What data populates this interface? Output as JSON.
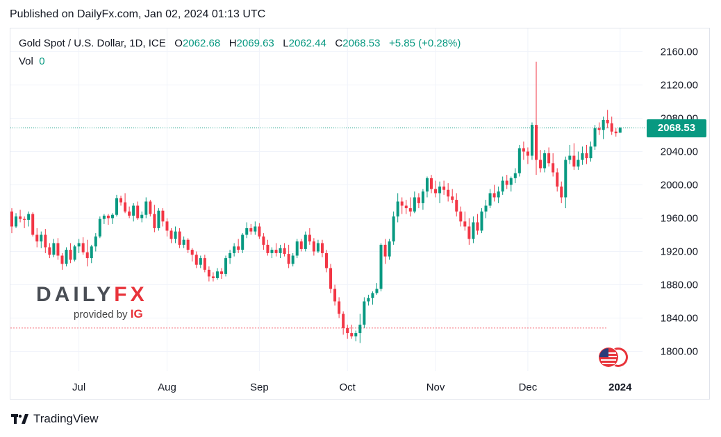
{
  "published": "Published on DailyFx.com, Jan 02, 2024 01:13 UTC",
  "header": {
    "symbol": "Gold Spot / U.S. Dollar, 1D, ICE",
    "o_label": "O",
    "o_value": "2062.68",
    "h_label": "H",
    "h_value": "2069.63",
    "l_label": "L",
    "l_value": "2062.44",
    "c_label": "C",
    "c_value": "2068.53",
    "change": "+5.85 (+0.28%)"
  },
  "volume": {
    "label": "Vol",
    "value": "0"
  },
  "last_price": "2068.53",
  "logo": {
    "daily": "DAILY",
    "fx": "FX",
    "provided_by": "provided by",
    "ig": "IG"
  },
  "footer": {
    "brand": "TradingView"
  },
  "colors": {
    "up": "#089981",
    "down": "#f23645",
    "grid": "#f0f3fa",
    "text": "#131722",
    "accent": "#089981"
  },
  "chart_data": {
    "type": "candlestick",
    "title": "Gold Spot / U.S. Dollar, 1D, ICE",
    "y_ticks": [
      "2160.00",
      "2120.00",
      "2080.00",
      "2040.00",
      "2000.00",
      "1960.00",
      "1920.00",
      "1880.00",
      "1840.00",
      "1800.00"
    ],
    "x_ticks": [
      {
        "label": "Jul",
        "index": 16
      },
      {
        "label": "Aug",
        "index": 37
      },
      {
        "label": "Sep",
        "index": 59
      },
      {
        "label": "Oct",
        "index": 80
      },
      {
        "label": "Nov",
        "index": 101
      },
      {
        "label": "Dec",
        "index": 123
      },
      {
        "label": "2024",
        "index": 145
      }
    ],
    "ylim": [
      1780,
      2180
    ],
    "last_close": 2068.53,
    "reference_low": 1828,
    "candles": [
      [
        1968,
        1972,
        1942,
        1950
      ],
      [
        1950,
        1966,
        1948,
        1962
      ],
      [
        1962,
        1970,
        1955,
        1959
      ],
      [
        1959,
        1962,
        1948,
        1958
      ],
      [
        1958,
        1968,
        1950,
        1965
      ],
      [
        1965,
        1967,
        1938,
        1940
      ],
      [
        1940,
        1948,
        1925,
        1932
      ],
      [
        1932,
        1944,
        1924,
        1940
      ],
      [
        1940,
        1947,
        1918,
        1925
      ],
      [
        1925,
        1930,
        1912,
        1916
      ],
      [
        1916,
        1935,
        1913,
        1930
      ],
      [
        1930,
        1936,
        1910,
        1915
      ],
      [
        1915,
        1918,
        1898,
        1905
      ],
      [
        1905,
        1925,
        1902,
        1922
      ],
      [
        1922,
        1930,
        1906,
        1910
      ],
      [
        1910,
        1928,
        1908,
        1926
      ],
      [
        1926,
        1935,
        1918,
        1930
      ],
      [
        1930,
        1937,
        1916,
        1919
      ],
      [
        1919,
        1934,
        1902,
        1912
      ],
      [
        1912,
        1928,
        1906,
        1926
      ],
      [
        1926,
        1942,
        1920,
        1938
      ],
      [
        1938,
        1962,
        1936,
        1959
      ],
      [
        1959,
        1965,
        1953,
        1963
      ],
      [
        1963,
        1965,
        1952,
        1960
      ],
      [
        1960,
        1966,
        1953,
        1964
      ],
      [
        1964,
        1988,
        1962,
        1984
      ],
      [
        1984,
        1987,
        1975,
        1979
      ],
      [
        1979,
        1990,
        1966,
        1968
      ],
      [
        1968,
        1974,
        1960,
        1963
      ],
      [
        1963,
        1978,
        1956,
        1975
      ],
      [
        1975,
        1980,
        1958,
        1960
      ],
      [
        1960,
        1968,
        1955,
        1964
      ],
      [
        1964,
        1985,
        1960,
        1980
      ],
      [
        1980,
        1982,
        1962,
        1965
      ],
      [
        1965,
        1976,
        1943,
        1948
      ],
      [
        1948,
        1972,
        1945,
        1969
      ],
      [
        1969,
        1972,
        1950,
        1956
      ],
      [
        1956,
        1960,
        1938,
        1945
      ],
      [
        1945,
        1948,
        1930,
        1935
      ],
      [
        1935,
        1950,
        1930,
        1944
      ],
      [
        1944,
        1948,
        1924,
        1928
      ],
      [
        1928,
        1938,
        1924,
        1934
      ],
      [
        1934,
        1936,
        1918,
        1922
      ],
      [
        1922,
        1924,
        1908,
        1916
      ],
      [
        1916,
        1920,
        1900,
        1904
      ],
      [
        1904,
        1915,
        1900,
        1912
      ],
      [
        1912,
        1916,
        1895,
        1898
      ],
      [
        1898,
        1902,
        1884,
        1890
      ],
      [
        1890,
        1895,
        1884,
        1888
      ],
      [
        1888,
        1900,
        1886,
        1896
      ],
      [
        1896,
        1900,
        1887,
        1893
      ],
      [
        1893,
        1915,
        1890,
        1912
      ],
      [
        1912,
        1922,
        1905,
        1918
      ],
      [
        1918,
        1930,
        1914,
        1926
      ],
      [
        1926,
        1935,
        1918,
        1922
      ],
      [
        1922,
        1942,
        1918,
        1940
      ],
      [
        1940,
        1955,
        1936,
        1948
      ],
      [
        1948,
        1953,
        1940,
        1944
      ],
      [
        1944,
        1956,
        1940,
        1950
      ],
      [
        1950,
        1954,
        1935,
        1938
      ],
      [
        1938,
        1942,
        1922,
        1928
      ],
      [
        1928,
        1934,
        1915,
        1918
      ],
      [
        1918,
        1925,
        1912,
        1922
      ],
      [
        1922,
        1930,
        1914,
        1918
      ],
      [
        1918,
        1928,
        1912,
        1924
      ],
      [
        1924,
        1930,
        1914,
        1917
      ],
      [
        1917,
        1928,
        1900,
        1905
      ],
      [
        1905,
        1918,
        1902,
        1915
      ],
      [
        1915,
        1935,
        1912,
        1932
      ],
      [
        1932,
        1935,
        1920,
        1923
      ],
      [
        1923,
        1944,
        1920,
        1940
      ],
      [
        1940,
        1948,
        1928,
        1932
      ],
      [
        1932,
        1936,
        1915,
        1920
      ],
      [
        1920,
        1934,
        1918,
        1930
      ],
      [
        1930,
        1934,
        1913,
        1918
      ],
      [
        1918,
        1922,
        1895,
        1900
      ],
      [
        1900,
        1905,
        1870,
        1875
      ],
      [
        1875,
        1880,
        1855,
        1860
      ],
      [
        1860,
        1865,
        1840,
        1845
      ],
      [
        1845,
        1848,
        1820,
        1828
      ],
      [
        1828,
        1832,
        1815,
        1822
      ],
      [
        1822,
        1832,
        1815,
        1818
      ],
      [
        1818,
        1825,
        1812,
        1822
      ],
      [
        1822,
        1845,
        1810,
        1832
      ],
      [
        1832,
        1865,
        1828,
        1860
      ],
      [
        1860,
        1868,
        1855,
        1864
      ],
      [
        1864,
        1872,
        1856,
        1870
      ],
      [
        1870,
        1882,
        1868,
        1875
      ],
      [
        1875,
        1930,
        1872,
        1928
      ],
      [
        1928,
        1935,
        1905,
        1914
      ],
      [
        1914,
        1935,
        1910,
        1932
      ],
      [
        1932,
        1968,
        1928,
        1962
      ],
      [
        1962,
        1990,
        1955,
        1980
      ],
      [
        1980,
        1985,
        1965,
        1975
      ],
      [
        1975,
        1982,
        1965,
        1972
      ],
      [
        1972,
        1985,
        1962,
        1968
      ],
      [
        1968,
        1992,
        1966,
        1985
      ],
      [
        1985,
        1990,
        1972,
        1978
      ],
      [
        1978,
        1995,
        1970,
        1992
      ],
      [
        1992,
        2010,
        1985,
        2008
      ],
      [
        2008,
        2012,
        1990,
        1995
      ],
      [
        1995,
        2005,
        1985,
        1990
      ],
      [
        1990,
        2004,
        1978,
        1998
      ],
      [
        1998,
        2005,
        1988,
        1994
      ],
      [
        1994,
        2002,
        1980,
        1986
      ],
      [
        1986,
        1995,
        1978,
        1982
      ],
      [
        1982,
        1990,
        1962,
        1968
      ],
      [
        1968,
        1974,
        1950,
        1956
      ],
      [
        1956,
        1968,
        1945,
        1950
      ],
      [
        1950,
        1960,
        1928,
        1935
      ],
      [
        1935,
        1962,
        1930,
        1955
      ],
      [
        1955,
        1965,
        1940,
        1945
      ],
      [
        1945,
        1972,
        1942,
        1968
      ],
      [
        1968,
        1982,
        1960,
        1975
      ],
      [
        1975,
        1995,
        1972,
        1990
      ],
      [
        1990,
        2000,
        1980,
        1985
      ],
      [
        1985,
        1998,
        1978,
        1992
      ],
      [
        1992,
        2010,
        1988,
        2005
      ],
      [
        2005,
        2012,
        1995,
        2000
      ],
      [
        2000,
        2010,
        1992,
        2008
      ],
      [
        2008,
        2020,
        2002,
        2014
      ],
      [
        2014,
        2048,
        2010,
        2044
      ],
      [
        2044,
        2052,
        2030,
        2040
      ],
      [
        2040,
        2045,
        2025,
        2035
      ],
      [
        2035,
        2075,
        2030,
        2072
      ],
      [
        2072,
        2148,
        2012,
        2030
      ],
      [
        2030,
        2042,
        2015,
        2020
      ],
      [
        2020,
        2042,
        2015,
        2038
      ],
      [
        2038,
        2045,
        2022,
        2026
      ],
      [
        2026,
        2038,
        2010,
        2015
      ],
      [
        2015,
        2020,
        1992,
        1998
      ],
      [
        1998,
        2004,
        1978,
        1985
      ],
      [
        1985,
        2034,
        1972,
        2030
      ],
      [
        2030,
        2048,
        2025,
        2035
      ],
      [
        2035,
        2050,
        2018,
        2022
      ],
      [
        2022,
        2040,
        2018,
        2030
      ],
      [
        2030,
        2046,
        2024,
        2038
      ],
      [
        2038,
        2048,
        2025,
        2032
      ],
      [
        2032,
        2052,
        2028,
        2046
      ],
      [
        2046,
        2072,
        2042,
        2068
      ],
      [
        2068,
        2075,
        2060,
        2066
      ],
      [
        2066,
        2082,
        2055,
        2078
      ],
      [
        2078,
        2090,
        2068,
        2074
      ],
      [
        2074,
        2082,
        2060,
        2064
      ],
      [
        2064,
        2068,
        2058,
        2062
      ],
      [
        2062.68,
        2069.63,
        2062.44,
        2068.53
      ]
    ]
  }
}
